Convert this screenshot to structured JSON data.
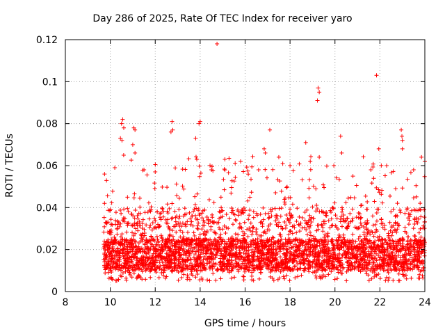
{
  "chart_data": {
    "type": "scatter",
    "title": "Day 286 of 2025, Rate Of TEC Index for receiver yaro",
    "xlabel": "GPS time / hours",
    "ylabel": "ROTI / TECUs",
    "xlim": [
      8,
      24
    ],
    "ylim": [
      0,
      0.12
    ],
    "x_ticks": [
      8,
      10,
      12,
      14,
      16,
      18,
      20,
      22,
      24
    ],
    "y_ticks": [
      0,
      0.02,
      0.04,
      0.06,
      0.08,
      0.1,
      0.12
    ],
    "x_tick_labels": [
      "8",
      "10",
      "12",
      "14",
      "16",
      "18",
      "20",
      "22",
      "24"
    ],
    "y_tick_labels": [
      "0",
      "0.02",
      "0.04",
      "0.06",
      "0.08",
      "0.1",
      "0.12"
    ],
    "grid": true,
    "marker": "+",
    "color": "#ff0000",
    "series": [
      {
        "name": "ROTI",
        "points": [
          [
            14.75,
            0.118
          ],
          [
            21.85,
            0.103
          ],
          [
            19.25,
            0.097
          ],
          [
            19.3,
            0.095
          ],
          [
            19.22,
            0.091
          ],
          [
            10.55,
            0.082
          ],
          [
            10.5,
            0.08
          ],
          [
            10.6,
            0.078
          ],
          [
            11.05,
            0.078
          ],
          [
            11.1,
            0.077
          ],
          [
            12.75,
            0.081
          ],
          [
            12.7,
            0.076
          ],
          [
            12.78,
            0.077
          ],
          [
            14.0,
            0.081
          ],
          [
            13.95,
            0.08
          ],
          [
            17.1,
            0.077
          ],
          [
            20.25,
            0.074
          ],
          [
            22.95,
            0.077
          ],
          [
            23.0,
            0.072
          ],
          [
            22.98,
            0.074
          ],
          [
            10.45,
            0.073
          ],
          [
            10.52,
            0.072
          ],
          [
            13.8,
            0.073
          ],
          [
            18.7,
            0.071
          ],
          [
            21.95,
            0.068
          ],
          [
            16.85,
            0.068
          ],
          [
            16.9,
            0.066
          ],
          [
            11.0,
            0.07
          ],
          [
            11.1,
            0.066
          ],
          [
            19.95,
            0.06
          ],
          [
            13.85,
            0.063
          ],
          [
            15.1,
            0.063
          ],
          [
            20.3,
            0.066
          ],
          [
            23.0,
            0.068
          ],
          [
            23.85,
            0.064
          ],
          [
            24.0,
            0.062
          ],
          [
            19.3,
            0.064
          ],
          [
            17.5,
            0.064
          ],
          [
            10.2,
            0.059
          ],
          [
            12.0,
            0.057
          ],
          [
            14.5,
            0.058
          ],
          [
            18.0,
            0.06
          ],
          [
            21.6,
            0.058
          ],
          [
            22.3,
            0.06
          ],
          [
            23.5,
            0.058
          ],
          [
            11.5,
            0.058
          ],
          [
            15.8,
            0.062
          ],
          [
            16.6,
            0.058
          ],
          [
            18.9,
            0.062
          ],
          [
            20.8,
            0.055
          ]
        ],
        "cluster": {
          "x_range": [
            9.7,
            24.0
          ],
          "typical_range": [
            0.005,
            0.04
          ],
          "dense_core": [
            0.01,
            0.025
          ],
          "approx_points": 3600
        }
      }
    ]
  }
}
